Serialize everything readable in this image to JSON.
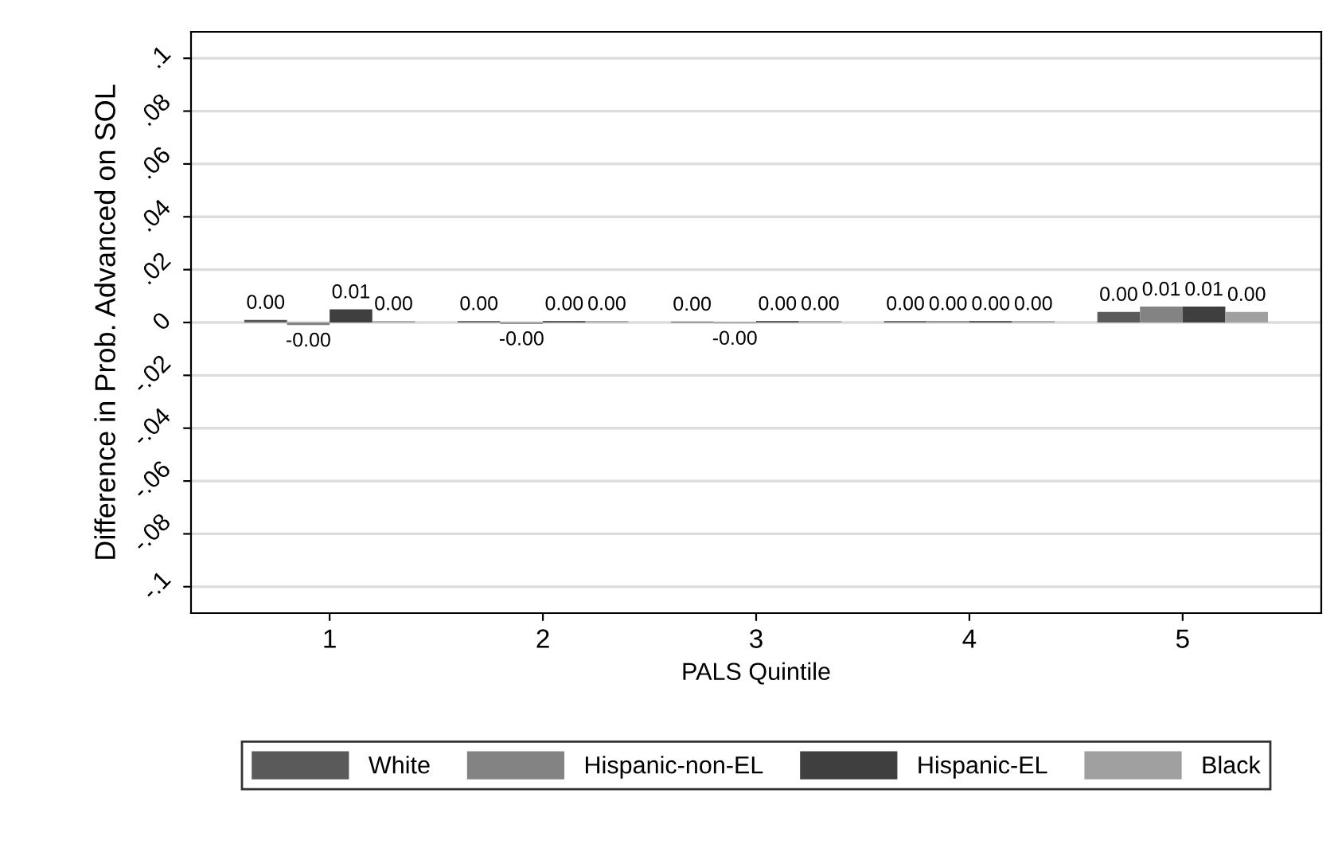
{
  "chart_data": {
    "type": "bar",
    "xlabel": "PALS Quintile",
    "ylabel": "Difference in Prob. Advanced on SOL",
    "categories": [
      "1",
      "2",
      "3",
      "4",
      "5"
    ],
    "series": [
      {
        "name": "White",
        "color": "#5a5a5a",
        "values": [
          0.001,
          0.0005,
          0.0003,
          0.0005,
          0.004
        ],
        "value_labels": [
          "0.00",
          "0.00",
          "0.00",
          "0.00",
          "0.00"
        ]
      },
      {
        "name": "Hispanic-non-EL",
        "color": "#838383",
        "values": [
          -0.001,
          -0.0005,
          -0.0003,
          0.0005,
          0.006
        ],
        "value_labels": [
          "-0.00",
          "-0.00",
          "-0.00",
          "0.00",
          "0.01"
        ]
      },
      {
        "name": "Hispanic-EL",
        "color": "#3f3f3f",
        "values": [
          0.005,
          0.0005,
          0.0005,
          0.0005,
          0.006
        ],
        "value_labels": [
          "0.01",
          "0.00",
          "0.00",
          "0.00",
          "0.01"
        ]
      },
      {
        "name": "Black",
        "color": "#a0a0a0",
        "values": [
          0.0005,
          0.0005,
          0.0005,
          0.0005,
          0.004
        ],
        "value_labels": [
          "0.00",
          "0.00",
          "0.00",
          "0.00",
          "0.00"
        ]
      }
    ],
    "ylim": [
      -0.11,
      0.11
    ],
    "yticks": [
      {
        "value": -0.1,
        "label": "-.1"
      },
      {
        "value": -0.08,
        "label": "-.08"
      },
      {
        "value": -0.06,
        "label": "-.06"
      },
      {
        "value": -0.04,
        "label": "-.04"
      },
      {
        "value": -0.02,
        "label": "-.02"
      },
      0,
      {
        "value": 0.02,
        "label": ".02"
      },
      {
        "value": 0.04,
        "label": ".04"
      },
      {
        "value": 0.06,
        "label": ".06"
      },
      {
        "value": 0.08,
        "label": ".08"
      },
      {
        "value": 0.1,
        "label": ".1"
      }
    ],
    "grid": "y",
    "legend": "bottom"
  }
}
